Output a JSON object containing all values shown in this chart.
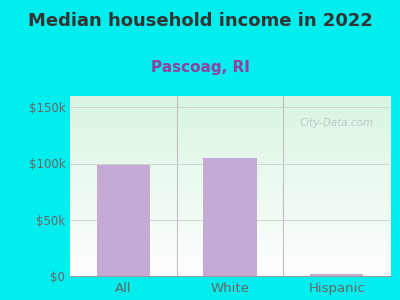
{
  "title": "Median household income in 2022",
  "subtitle": "Pascoag, RI",
  "categories": [
    "All",
    "White",
    "Hispanic"
  ],
  "values": [
    99000,
    105000,
    2000
  ],
  "bar_color": "#c4aad4",
  "title_fontsize": 13,
  "title_color": "#333333",
  "subtitle_fontsize": 11,
  "subtitle_color": "#9040a0",
  "tick_label_color": "#666666",
  "background_outer": "#00EEEE",
  "plot_bg_top": "#d8f0e0",
  "plot_bg_bottom": "#ffffff",
  "ylim": [
    0,
    160000
  ],
  "yticks": [
    0,
    50000,
    100000,
    150000
  ],
  "ytick_labels": [
    "$0",
    "$50k",
    "$100k",
    "$150k"
  ],
  "watermark": "City-Data.com",
  "grid_color": "#cccccc"
}
